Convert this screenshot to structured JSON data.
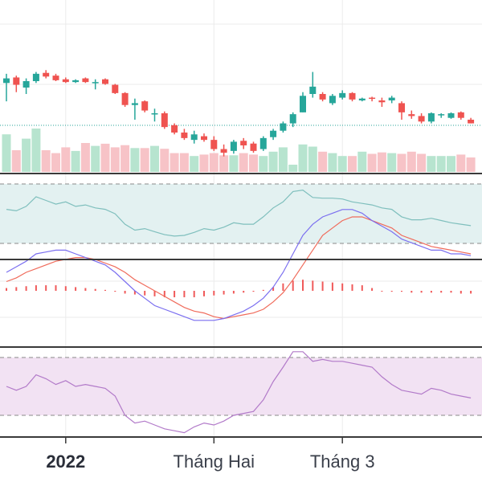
{
  "chart_data": {
    "type": "candlestick",
    "x_ticks": [
      {
        "label": "2022",
        "bold": true,
        "index": 6
      },
      {
        "label": "Tháng Hai",
        "bold": false,
        "index": 21
      },
      {
        "label": "Tháng 3",
        "bold": false,
        "index": 34
      }
    ],
    "colors": {
      "up": "#26a69a",
      "down": "#ef5350",
      "up_volume": "#b7e4cf",
      "down_volume": "#f7c3c7",
      "price_line": "#26a69a",
      "rsi_line": "#7fbfbd",
      "rsi_fill": "#e3f1f1",
      "macd_line": "#7b6ff0",
      "signal_line": "#f06b5b",
      "histogram": "#f05a5a",
      "stoch_line": "#b27ac9",
      "stoch_fill": "#f2e2f3",
      "separator": "#3a3a3a",
      "grid": "#ebebeb"
    },
    "candles": [
      {
        "o": 50,
        "h": 60,
        "l": 30,
        "c": 55
      },
      {
        "o": 56,
        "h": 58,
        "l": 40,
        "c": 48
      },
      {
        "o": 45,
        "h": 55,
        "l": 38,
        "c": 52
      },
      {
        "o": 52,
        "h": 62,
        "l": 50,
        "c": 60
      },
      {
        "o": 61,
        "h": 64,
        "l": 55,
        "c": 57
      },
      {
        "o": 58,
        "h": 60,
        "l": 52,
        "c": 53
      },
      {
        "o": 54,
        "h": 56,
        "l": 50,
        "c": 51
      },
      {
        "o": 51,
        "h": 54,
        "l": 50,
        "c": 53
      },
      {
        "o": 55,
        "h": 56,
        "l": 50,
        "c": 51
      },
      {
        "o": 50,
        "h": 54,
        "l": 43,
        "c": 51
      },
      {
        "o": 54,
        "h": 55,
        "l": 48,
        "c": 49
      },
      {
        "o": 48,
        "h": 49,
        "l": 38,
        "c": 39
      },
      {
        "o": 39,
        "h": 40,
        "l": 24,
        "c": 26
      },
      {
        "o": 26,
        "h": 33,
        "l": 10,
        "c": 28
      },
      {
        "o": 30,
        "h": 31,
        "l": 18,
        "c": 20
      },
      {
        "o": 16,
        "h": 22,
        "l": 8,
        "c": 17
      },
      {
        "o": 17,
        "h": 19,
        "l": 0,
        "c": 2
      },
      {
        "o": 4,
        "h": 6,
        "l": -6,
        "c": -4
      },
      {
        "o": -4,
        "h": 0,
        "l": -12,
        "c": -10
      },
      {
        "o": -12,
        "h": -2,
        "l": -16,
        "c": -6
      },
      {
        "o": -8,
        "h": -5,
        "l": -14,
        "c": -12
      },
      {
        "o": -12,
        "h": -8,
        "l": -24,
        "c": -22
      },
      {
        "o": -22,
        "h": -17,
        "l": -30,
        "c": -26
      },
      {
        "o": -24,
        "h": -12,
        "l": -27,
        "c": -14
      },
      {
        "o": -13,
        "h": -10,
        "l": -22,
        "c": -18
      },
      {
        "o": -16,
        "h": -14,
        "l": -26,
        "c": -24
      },
      {
        "o": -22,
        "h": -8,
        "l": -24,
        "c": -10
      },
      {
        "o": -9,
        "h": 0,
        "l": -12,
        "c": -2
      },
      {
        "o": -2,
        "h": 8,
        "l": -4,
        "c": 6
      },
      {
        "o": 6,
        "h": 18,
        "l": 2,
        "c": 16
      },
      {
        "o": 18,
        "h": 40,
        "l": 18,
        "c": 36
      },
      {
        "o": 38,
        "h": 62,
        "l": 34,
        "c": 46
      },
      {
        "o": 38,
        "h": 40,
        "l": 30,
        "c": 32
      },
      {
        "o": 28,
        "h": 38,
        "l": 26,
        "c": 36
      },
      {
        "o": 34,
        "h": 42,
        "l": 32,
        "c": 39
      },
      {
        "o": 39,
        "h": 40,
        "l": 30,
        "c": 32
      },
      {
        "o": 31,
        "h": 34,
        "l": 30,
        "c": 33
      },
      {
        "o": 34,
        "h": 35,
        "l": 30,
        "c": 33
      },
      {
        "o": 31,
        "h": 34,
        "l": 24,
        "c": 29
      },
      {
        "o": 31,
        "h": 36,
        "l": 28,
        "c": 34
      },
      {
        "o": 28,
        "h": 30,
        "l": 10,
        "c": 18
      },
      {
        "o": 16,
        "h": 20,
        "l": 11,
        "c": 14
      },
      {
        "o": 14,
        "h": 17,
        "l": 6,
        "c": 8
      },
      {
        "o": 8,
        "h": 18,
        "l": 6,
        "c": 17
      },
      {
        "o": 15,
        "h": 17,
        "l": 12,
        "c": 16
      },
      {
        "o": 12,
        "h": 18,
        "l": 11,
        "c": 17
      },
      {
        "o": 18,
        "h": 19,
        "l": 10,
        "c": 12
      },
      {
        "o": 10,
        "h": 12,
        "l": 6,
        "c": 6
      }
    ],
    "volume": [
      52,
      30,
      46,
      60,
      30,
      26,
      34,
      29,
      40,
      36,
      39,
      34,
      37,
      33,
      33,
      36,
      32,
      26,
      26,
      22,
      24,
      26,
      23,
      23,
      26,
      24,
      22,
      28,
      34,
      10,
      38,
      35,
      28,
      26,
      22,
      22,
      28,
      25,
      27,
      26,
      25,
      28,
      25,
      22,
      22,
      22,
      24,
      20
    ],
    "rsi": [
      48,
      46,
      52,
      65,
      60,
      55,
      58,
      52,
      54,
      50,
      48,
      42,
      28,
      20,
      22,
      18,
      14,
      12,
      13,
      17,
      22,
      20,
      24,
      30,
      28,
      28,
      38,
      50,
      58,
      72,
      74,
      64,
      63,
      63,
      62,
      58,
      56,
      54,
      50,
      48,
      38,
      34,
      34,
      36,
      33,
      30,
      28,
      26
    ],
    "macd": {
      "macd": [
        10,
        13,
        16,
        20,
        21,
        22,
        22,
        20,
        18,
        16,
        14,
        10,
        5,
        0,
        -4,
        -8,
        -10,
        -12,
        -14,
        -16,
        -16,
        -16,
        -15,
        -13,
        -11,
        -8,
        -4,
        2,
        10,
        20,
        30,
        36,
        40,
        42,
        44,
        44,
        42,
        38,
        35,
        32,
        28,
        26,
        24,
        22,
        22,
        20,
        20,
        19
      ],
      "signal": [
        5,
        7,
        10,
        12,
        14,
        16,
        17,
        18,
        18,
        17,
        15,
        13,
        10,
        6,
        3,
        0,
        -3,
        -6,
        -9,
        -11,
        -12,
        -14,
        -15,
        -14,
        -13,
        -12,
        -10,
        -6,
        -1,
        6,
        14,
        22,
        30,
        34,
        38,
        40,
        40,
        38,
        36,
        34,
        30,
        28,
        26,
        24,
        23,
        22,
        21,
        20
      ],
      "histogram": [
        3,
        4,
        5,
        6,
        6,
        6,
        5,
        4,
        3,
        2,
        1,
        -1,
        -3,
        -4,
        -5,
        -6,
        -7,
        -7,
        -7,
        -7,
        -6,
        -5,
        -4,
        -3,
        -2,
        -1,
        1,
        4,
        8,
        11,
        12,
        11,
        10,
        9,
        8,
        7,
        6,
        3,
        0,
        -1,
        -1,
        -2,
        -2,
        -2,
        -2,
        -2,
        -3,
        -3
      ]
    },
    "stochastic": [
      50,
      46,
      50,
      62,
      58,
      52,
      56,
      50,
      52,
      50,
      48,
      40,
      20,
      12,
      14,
      10,
      6,
      4,
      2,
      8,
      12,
      10,
      14,
      20,
      22,
      24,
      36,
      55,
      70,
      86,
      86,
      76,
      78,
      76,
      76,
      74,
      72,
      70,
      60,
      52,
      46,
      44,
      42,
      48,
      46,
      42,
      40,
      38
    ]
  }
}
